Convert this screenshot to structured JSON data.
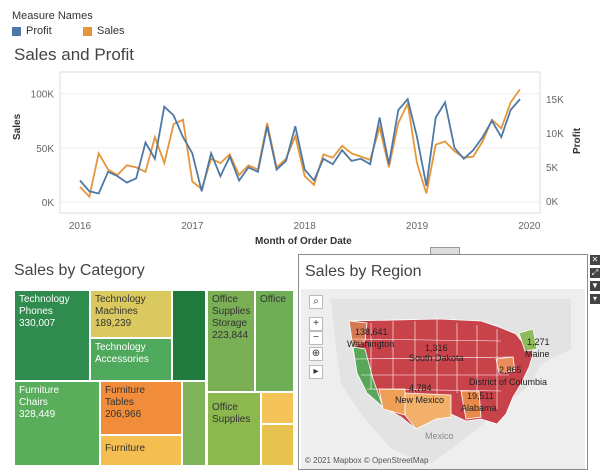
{
  "legend": {
    "title": "Measure Names",
    "items": [
      {
        "label": "Profit",
        "color": "#4e79a7"
      },
      {
        "label": "Sales",
        "color": "#e6963a"
      }
    ]
  },
  "sales_profit": {
    "title": "Sales and Profit",
    "left_axis_label": "Sales",
    "right_axis_label": "Profit",
    "x_axis_label": "Month of Order Date",
    "left_ticks": [
      "100K",
      "50K",
      "0K"
    ],
    "right_ticks": [
      "15K",
      "10K",
      "5K",
      "0K"
    ],
    "x_ticks": [
      "2016",
      "2017",
      "2018",
      "2019",
      "2020"
    ]
  },
  "chart_data": {
    "type": "line",
    "title": "Sales and Profit",
    "xlabel": "Month of Order Date",
    "ylabel": "Sales",
    "y2label": "Profit",
    "x": [
      "2016-01",
      "2016-02",
      "2016-03",
      "2016-04",
      "2016-05",
      "2016-06",
      "2016-07",
      "2016-08",
      "2016-09",
      "2016-10",
      "2016-11",
      "2016-12",
      "2017-01",
      "2017-02",
      "2017-03",
      "2017-04",
      "2017-05",
      "2017-06",
      "2017-07",
      "2017-08",
      "2017-09",
      "2017-10",
      "2017-11",
      "2017-12",
      "2018-01",
      "2018-02",
      "2018-03",
      "2018-04",
      "2018-05",
      "2018-06",
      "2018-07",
      "2018-08",
      "2018-09",
      "2018-10",
      "2018-11",
      "2018-12",
      "2019-01",
      "2019-02",
      "2019-03",
      "2019-04",
      "2019-05",
      "2019-06",
      "2019-07",
      "2019-08",
      "2019-09",
      "2019-10",
      "2019-11",
      "2019-12"
    ],
    "ylim": [
      -10000,
      120000
    ],
    "y2lim": [
      -1800,
      19000
    ],
    "series": [
      {
        "name": "Sales",
        "axis": "left",
        "values": [
          14000,
          5000,
          45000,
          30000,
          25000,
          34000,
          32000,
          28000,
          60000,
          36000,
          72000,
          76000,
          19000,
          12000,
          40000,
          36000,
          44000,
          25000,
          34000,
          30000,
          73000,
          32000,
          40000,
          61000,
          24000,
          16000,
          44000,
          41000,
          52000,
          45000,
          42000,
          39000,
          69000,
          32000,
          73000,
          91000,
          36000,
          8000,
          53000,
          56000,
          47000,
          41000,
          42000,
          56000,
          76000,
          68000,
          92000,
          104000
        ]
      },
      {
        "name": "Profit",
        "axis": "left",
        "values": [
          20000,
          10000,
          8000,
          28000,
          24000,
          18000,
          22000,
          55000,
          40000,
          88000,
          80000,
          60000,
          45000,
          10000,
          45000,
          24000,
          42000,
          20000,
          32000,
          28000,
          70000,
          30000,
          38000,
          70000,
          30000,
          20000,
          40000,
          35000,
          48000,
          38000,
          40000,
          35000,
          78000,
          35000,
          85000,
          95000,
          60000,
          15000,
          78000,
          92000,
          50000,
          40000,
          48000,
          60000,
          75000,
          60000,
          85000,
          95000
        ]
      }
    ]
  },
  "category": {
    "title": "Sales by Category",
    "cells": [
      {
        "l1": "Technology",
        "l2": "Phones",
        "v": "330,007",
        "color": "#2f8b4e"
      },
      {
        "l1": "Technology",
        "l2": "Machines",
        "v": "189,239",
        "color": "#dac95f"
      },
      {
        "l1": "Technology",
        "l2": "Accessories",
        "v": "",
        "color": "#4fa95c"
      },
      {
        "l1": "",
        "l2": "",
        "v": "",
        "color": "#1f7a3c"
      },
      {
        "l1": "Office",
        "l2": "Supplies",
        "l3": "Storage",
        "v": "223,844",
        "color": "#7aaf55"
      },
      {
        "l1": "Office",
        "l2": "",
        "v": "",
        "color": "#6fae57"
      },
      {
        "l1": "Furniture",
        "l2": "Chairs",
        "v": "328,449",
        "color": "#5aad5a"
      },
      {
        "l1": "Furniture",
        "l2": "Tables",
        "v": "206,966",
        "color": "#f08c3a"
      },
      {
        "l1": "Furniture",
        "l2": "",
        "v": "",
        "color": "#f4be50"
      },
      {
        "l1": "Office",
        "l2": "Supplies",
        "v": "",
        "color": "#8db84f"
      }
    ]
  },
  "region": {
    "title": "Sales by Region",
    "attribution": "© 2021 Mapbox © OpenStreetMap",
    "country_label": "Mexico",
    "labels": [
      {
        "v": "138,641",
        "s": "Washington"
      },
      {
        "v": "1,316",
        "s": "South Dakota"
      },
      {
        "v": "1,271",
        "s": "Maine"
      },
      {
        "v": "2,865",
        "s": "District of Columbia"
      },
      {
        "v": "4,784",
        "s": "New Mexico"
      },
      {
        "v": "19,511",
        "s": "Alabama"
      }
    ]
  }
}
